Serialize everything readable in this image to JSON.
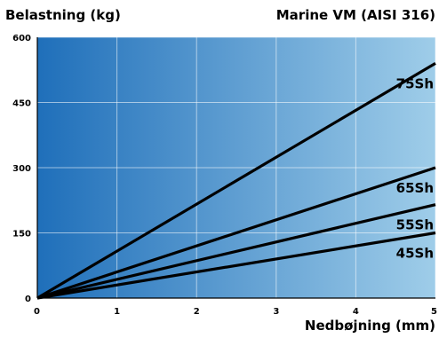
{
  "colors": {
    "gradient_start": "#1f6fba",
    "gradient_end": "#9fcde9",
    "line": "#000000",
    "grid": "#ffffff"
  },
  "chart_data": {
    "type": "line",
    "title_left": "Belastning (kg)",
    "title_right": "Marine VM (AISI 316)",
    "xlabel": "Nedbøjning (mm)",
    "ylabel": "",
    "xlim": [
      0,
      5
    ],
    "ylim": [
      0,
      600
    ],
    "xticks": [
      0,
      1,
      2,
      3,
      4,
      5
    ],
    "yticks": [
      0,
      150,
      300,
      450,
      600
    ],
    "x_tick_labels": [
      "0",
      "1",
      "2",
      "3",
      "4",
      "5"
    ],
    "y_tick_labels": [
      "0",
      "150",
      "300",
      "450",
      "600"
    ],
    "grid": true,
    "series": [
      {
        "name": "75Sh",
        "x": [
          0,
          5
        ],
        "y": [
          0,
          540
        ]
      },
      {
        "name": "65Sh",
        "x": [
          0,
          5
        ],
        "y": [
          0,
          300
        ]
      },
      {
        "name": "55Sh",
        "x": [
          0,
          5
        ],
        "y": [
          0,
          215
        ]
      },
      {
        "name": "45Sh",
        "x": [
          0,
          5
        ],
        "y": [
          0,
          150
        ]
      }
    ]
  }
}
